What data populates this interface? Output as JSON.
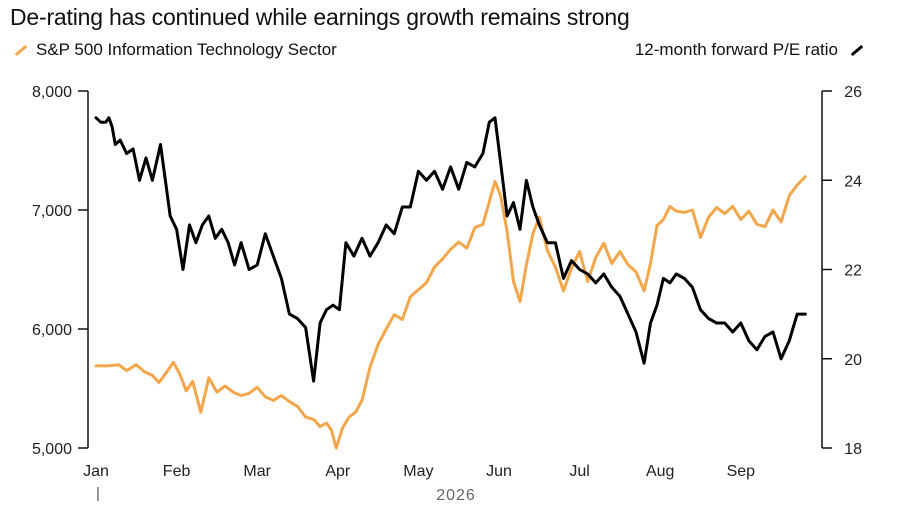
{
  "chart_data": {
    "type": "line",
    "title": "De-rating has continued while earnings growth remains strong",
    "year_label": "2026",
    "colors": {
      "orange": "#f3a64a",
      "black": "#000000"
    },
    "x_ticks": [
      "Jan",
      "Feb",
      "Mar",
      "Apr",
      "May",
      "Jun",
      "Jul",
      "Aug",
      "Sep"
    ],
    "left_axis": {
      "ticks": [
        "8,000",
        "7,000",
        "6,000",
        "5,000"
      ],
      "tick_values": [
        8000,
        7000,
        6000,
        5000
      ],
      "ylim": [
        5000,
        8000
      ]
    },
    "right_axis": {
      "ticks": [
        "26",
        "24",
        "22",
        "20",
        "18"
      ],
      "tick_values": [
        26,
        24,
        22,
        20,
        18
      ],
      "ylim": [
        18,
        26
      ]
    },
    "series": [
      {
        "name": "S&P 500 Information Technology Sector",
        "axis": "left",
        "color": "#f3a64a",
        "x": [
          0,
          0.14,
          0.28,
          0.38,
          0.5,
          0.6,
          0.7,
          0.78,
          0.88,
          0.96,
          1.04,
          1.12,
          1.2,
          1.3,
          1.4,
          1.5,
          1.6,
          1.7,
          1.8,
          1.9,
          2.0,
          2.1,
          2.2,
          2.3,
          2.4,
          2.5,
          2.6,
          2.7,
          2.78,
          2.86,
          2.92,
          2.98,
          3.06,
          3.14,
          3.22,
          3.3,
          3.4,
          3.5,
          3.6,
          3.7,
          3.8,
          3.9,
          4.0,
          4.1,
          4.2,
          4.3,
          4.4,
          4.5,
          4.6,
          4.7,
          4.8,
          4.88,
          4.95,
          5.02,
          5.1,
          5.18,
          5.26,
          5.34,
          5.42,
          5.5,
          5.6,
          5.7,
          5.8,
          5.9,
          6.0,
          6.1,
          6.2,
          6.3,
          6.4,
          6.5,
          6.6,
          6.7,
          6.8,
          6.88,
          6.96,
          7.04,
          7.12,
          7.2,
          7.3,
          7.4,
          7.5,
          7.6,
          7.7,
          7.8,
          7.9,
          8.0,
          8.1,
          8.2,
          8.3,
          8.4,
          8.5,
          8.6,
          8.7,
          8.8
        ],
        "values": [
          5690,
          5690,
          5700,
          5650,
          5700,
          5640,
          5610,
          5550,
          5640,
          5720,
          5620,
          5480,
          5560,
          5300,
          5590,
          5470,
          5520,
          5470,
          5440,
          5460,
          5510,
          5430,
          5400,
          5440,
          5390,
          5350,
          5260,
          5240,
          5180,
          5210,
          5150,
          5000,
          5170,
          5260,
          5300,
          5400,
          5680,
          5870,
          6000,
          6120,
          6080,
          6270,
          6330,
          6390,
          6520,
          6590,
          6670,
          6730,
          6680,
          6850,
          6880,
          7070,
          7240,
          7120,
          6820,
          6400,
          6230,
          6540,
          6800,
          6940,
          6660,
          6520,
          6320,
          6510,
          6650,
          6400,
          6600,
          6720,
          6550,
          6650,
          6540,
          6480,
          6320,
          6550,
          6870,
          6920,
          7030,
          6990,
          6980,
          7000,
          6770,
          6940,
          7020,
          6970,
          7030,
          6920,
          6990,
          6880,
          6860,
          7000,
          6900,
          7120,
          7210,
          7280
        ]
      },
      {
        "name": "12-month forward P/E ratio",
        "axis": "right",
        "color": "#000000",
        "x": [
          0,
          0.06,
          0.12,
          0.16,
          0.2,
          0.24,
          0.3,
          0.38,
          0.46,
          0.54,
          0.62,
          0.7,
          0.8,
          0.92,
          1.0,
          1.08,
          1.16,
          1.24,
          1.32,
          1.4,
          1.48,
          1.56,
          1.64,
          1.72,
          1.8,
          1.9,
          2.0,
          2.1,
          2.2,
          2.3,
          2.4,
          2.5,
          2.6,
          2.7,
          2.78,
          2.86,
          2.94,
          3.02,
          3.1,
          3.2,
          3.3,
          3.4,
          3.5,
          3.6,
          3.7,
          3.8,
          3.9,
          4.0,
          4.1,
          4.2,
          4.3,
          4.4,
          4.5,
          4.6,
          4.7,
          4.8,
          4.88,
          4.95,
          5.02,
          5.1,
          5.18,
          5.26,
          5.34,
          5.42,
          5.5,
          5.6,
          5.7,
          5.8,
          5.9,
          6.0,
          6.1,
          6.2,
          6.3,
          6.4,
          6.5,
          6.6,
          6.7,
          6.8,
          6.88,
          6.96,
          7.04,
          7.12,
          7.2,
          7.3,
          7.4,
          7.5,
          7.6,
          7.7,
          7.8,
          7.9,
          8.0,
          8.1,
          8.2,
          8.3,
          8.4,
          8.5,
          8.6,
          8.7,
          8.8
        ],
        "values": [
          25.4,
          25.3,
          25.3,
          25.4,
          25.2,
          24.8,
          24.9,
          24.6,
          24.7,
          24.0,
          24.5,
          24.0,
          24.8,
          23.2,
          22.9,
          22.0,
          23.0,
          22.6,
          23.0,
          23.2,
          22.7,
          22.9,
          22.6,
          22.1,
          22.6,
          22.0,
          22.1,
          22.8,
          22.3,
          21.8,
          21.0,
          20.9,
          20.7,
          19.5,
          20.8,
          21.1,
          21.2,
          21.1,
          22.6,
          22.3,
          22.7,
          22.3,
          22.6,
          23.0,
          22.8,
          23.4,
          23.4,
          24.2,
          24.0,
          24.2,
          23.8,
          24.3,
          23.8,
          24.4,
          24.3,
          24.6,
          25.3,
          25.4,
          24.4,
          23.2,
          23.5,
          22.9,
          24.0,
          23.4,
          23.0,
          22.6,
          22.6,
          21.8,
          22.2,
          22.0,
          21.9,
          21.7,
          21.9,
          21.6,
          21.4,
          21.0,
          20.6,
          19.9,
          20.8,
          21.2,
          21.8,
          21.7,
          21.9,
          21.8,
          21.6,
          21.1,
          20.9,
          20.8,
          20.8,
          20.6,
          20.8,
          20.4,
          20.2,
          20.5,
          20.6,
          20.0,
          20.4,
          21.0,
          21.0
        ]
      }
    ]
  }
}
